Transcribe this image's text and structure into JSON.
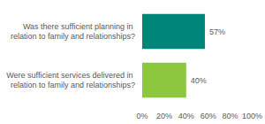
{
  "chart_data": {
    "type": "bar",
    "orientation": "horizontal",
    "categories": [
      "Was there sufficient planning in relation to family and relationships?",
      "Were sufficient services delivered in relation to family and relationships?"
    ],
    "values": [
      57,
      40
    ],
    "value_labels": [
      "57%",
      "40%"
    ],
    "colors": [
      "#00857a",
      "#8dc63f"
    ],
    "xlim": [
      0,
      100
    ],
    "xticks": [
      {
        "value": 0,
        "label": "0%"
      },
      {
        "value": 20,
        "label": "20%"
      },
      {
        "value": 40,
        "label": "40%"
      },
      {
        "value": 60,
        "label": "60%"
      },
      {
        "value": 80,
        "label": "80%"
      },
      {
        "value": 100,
        "label": "100%"
      }
    ],
    "grid": false,
    "data_labels": true
  }
}
